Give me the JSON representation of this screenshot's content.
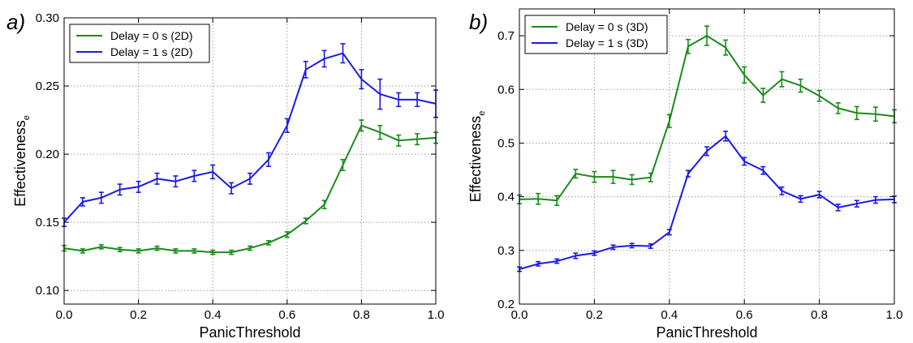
{
  "chart_data": [
    {
      "panel_label": "a)",
      "type": "line",
      "xlabel": "PanicThreshold",
      "ylabel": "Effectiveness",
      "ylabel_subscript": "e",
      "xlim": [
        0.0,
        1.0
      ],
      "ylim": [
        0.09,
        0.3
      ],
      "xticks": [
        0.0,
        0.2,
        0.4,
        0.6,
        0.8,
        1.0
      ],
      "xtick_labels": [
        "0.0",
        "0.2",
        "0.4",
        "0.6",
        "0.8",
        "1.0"
      ],
      "yticks": [
        0.1,
        0.15,
        0.2,
        0.25,
        0.3
      ],
      "ytick_labels": [
        "0.10",
        "0.15",
        "0.20",
        "0.25",
        "0.30"
      ],
      "grid": true,
      "legend_position": "top-left",
      "x": [
        0.0,
        0.05,
        0.1,
        0.15,
        0.2,
        0.25,
        0.3,
        0.35,
        0.4,
        0.45,
        0.5,
        0.55,
        0.6,
        0.65,
        0.7,
        0.75,
        0.8,
        0.85,
        0.9,
        0.95,
        1.0
      ],
      "series": [
        {
          "name": "Delay = 0 s (2D)",
          "color": "#1a8a1a",
          "values": [
            0.131,
            0.129,
            0.132,
            0.13,
            0.129,
            0.131,
            0.129,
            0.129,
            0.128,
            0.128,
            0.131,
            0.135,
            0.141,
            0.151,
            0.163,
            0.192,
            0.221,
            0.216,
            0.21,
            0.211,
            0.212
          ],
          "errors": [
            0.002,
            0.0015,
            0.0015,
            0.0015,
            0.0015,
            0.0015,
            0.0015,
            0.0015,
            0.0015,
            0.0015,
            0.0015,
            0.0015,
            0.002,
            0.002,
            0.003,
            0.004,
            0.004,
            0.005,
            0.004,
            0.004,
            0.004
          ]
        },
        {
          "name": "Delay = 1 s (2D)",
          "color": "#1a1ae6",
          "values": [
            0.15,
            0.165,
            0.168,
            0.174,
            0.176,
            0.182,
            0.18,
            0.184,
            0.187,
            0.175,
            0.182,
            0.196,
            0.221,
            0.262,
            0.27,
            0.274,
            0.255,
            0.244,
            0.24,
            0.24,
            0.237
          ],
          "errors": [
            0.003,
            0.003,
            0.004,
            0.004,
            0.004,
            0.004,
            0.004,
            0.004,
            0.005,
            0.004,
            0.004,
            0.005,
            0.005,
            0.006,
            0.006,
            0.007,
            0.007,
            0.011,
            0.005,
            0.005,
            0.01
          ]
        }
      ]
    },
    {
      "panel_label": "b)",
      "type": "line",
      "xlabel": "PanicThreshold",
      "ylabel": "Effectiveness",
      "ylabel_subscript": "e",
      "xlim": [
        0.0,
        1.0
      ],
      "ylim": [
        0.2,
        0.75
      ],
      "xticks": [
        0.0,
        0.2,
        0.4,
        0.6,
        0.8,
        1.0
      ],
      "xtick_labels": [
        "0.0",
        "0.2",
        "0.4",
        "0.6",
        "0.8",
        "1.0"
      ],
      "yticks": [
        0.2,
        0.3,
        0.4,
        0.5,
        0.6,
        0.7
      ],
      "ytick_labels": [
        "0.2",
        "0.3",
        "0.4",
        "0.5",
        "0.6",
        "0.7"
      ],
      "grid": true,
      "legend_position": "top-left",
      "x": [
        0.0,
        0.05,
        0.1,
        0.15,
        0.2,
        0.25,
        0.3,
        0.35,
        0.4,
        0.45,
        0.5,
        0.55,
        0.6,
        0.65,
        0.7,
        0.75,
        0.8,
        0.85,
        0.9,
        0.95,
        1.0
      ],
      "series": [
        {
          "name": "Delay = 0 s (3D)",
          "color": "#1a8a1a",
          "values": [
            0.395,
            0.396,
            0.393,
            0.443,
            0.437,
            0.437,
            0.432,
            0.436,
            0.541,
            0.68,
            0.7,
            0.678,
            0.627,
            0.589,
            0.619,
            0.607,
            0.588,
            0.565,
            0.556,
            0.554,
            0.55
          ],
          "errors": [
            0.008,
            0.01,
            0.009,
            0.008,
            0.01,
            0.012,
            0.009,
            0.008,
            0.012,
            0.013,
            0.018,
            0.014,
            0.015,
            0.013,
            0.014,
            0.012,
            0.01,
            0.01,
            0.012,
            0.013,
            0.012
          ]
        },
        {
          "name": "Delay = 1 s (3D)",
          "color": "#1a1ae6",
          "values": [
            0.265,
            0.275,
            0.28,
            0.29,
            0.295,
            0.306,
            0.309,
            0.308,
            0.334,
            0.443,
            0.485,
            0.513,
            0.466,
            0.449,
            0.411,
            0.396,
            0.404,
            0.38,
            0.387,
            0.394,
            0.395
          ],
          "errors": [
            0.004,
            0.004,
            0.004,
            0.005,
            0.004,
            0.004,
            0.004,
            0.004,
            0.005,
            0.006,
            0.008,
            0.009,
            0.007,
            0.007,
            0.007,
            0.006,
            0.006,
            0.006,
            0.006,
            0.006,
            0.006
          ]
        }
      ]
    }
  ]
}
